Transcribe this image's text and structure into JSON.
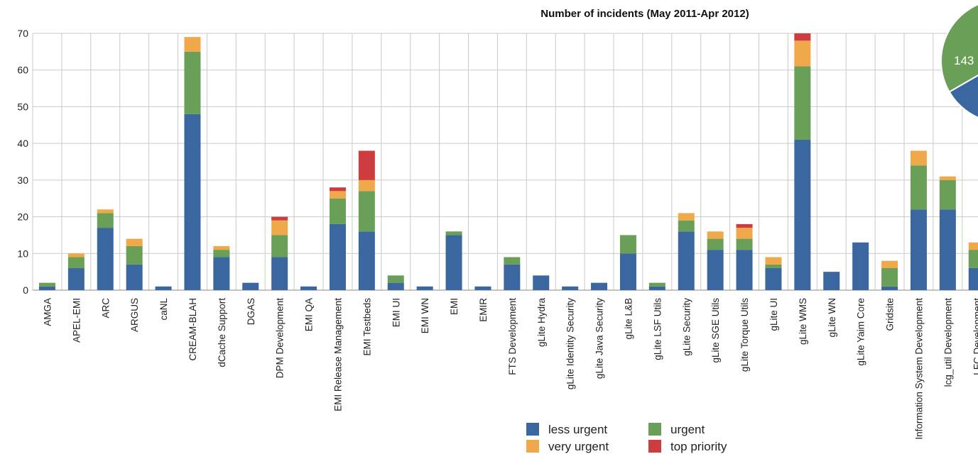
{
  "chart_data": {
    "type": "bar",
    "stacked": true,
    "title": "Number of incidents (May 2011-Apr 2012)",
    "xlabel": "",
    "ylabel": "",
    "ylim": [
      0,
      70
    ],
    "yticks": [
      0,
      10,
      20,
      30,
      40,
      50,
      60,
      70
    ],
    "grid": true,
    "legend_position": "bottom-center",
    "categories": [
      "AMGA",
      "APEL-EMI",
      "ARC",
      "ARGUS",
      "caNL",
      "CREAM-BLAH",
      "dCache Support",
      "DGAS",
      "DPM Development",
      "EMI QA",
      "EMI Release Management",
      "EMI Testbeds",
      "EMI UI",
      "EMI WN",
      "EMI",
      "EMIR",
      "FTS Development",
      "gLite Hydra",
      "gLite Identity Security",
      "gLite Java Security",
      "gLite L&B",
      "gLite LSF Utils",
      "gLite Security",
      "gLite SGE Utils",
      "gLite Torque Utils",
      "gLite UI",
      "gLite WMS",
      "gLite WN",
      "gLite Yaim Core",
      "Gridsite",
      "Information System Development",
      "lcg_util Development",
      "LFC Development"
    ],
    "series": [
      {
        "name": "less urgent",
        "color": "#3b67a0",
        "values": [
          1,
          6,
          17,
          7,
          1,
          48,
          9,
          2,
          9,
          1,
          18,
          16,
          2,
          1,
          15,
          1,
          7,
          4,
          1,
          2,
          10,
          1,
          16,
          11,
          11,
          6,
          41,
          5,
          13,
          1,
          22,
          22,
          6
        ]
      },
      {
        "name": "urgent",
        "color": "#6a9f58",
        "values": [
          1,
          3,
          4,
          5,
          0,
          17,
          2,
          0,
          6,
          0,
          7,
          11,
          2,
          0,
          1,
          0,
          2,
          0,
          0,
          0,
          5,
          1,
          3,
          3,
          3,
          1,
          20,
          0,
          0,
          5,
          12,
          8,
          5
        ]
      },
      {
        "name": "very urgent",
        "color": "#f0a94a",
        "values": [
          0,
          1,
          1,
          2,
          0,
          4,
          1,
          0,
          4,
          0,
          2,
          3,
          0,
          0,
          0,
          0,
          0,
          0,
          0,
          0,
          0,
          0,
          2,
          2,
          3,
          2,
          7,
          0,
          0,
          2,
          4,
          1,
          2
        ]
      },
      {
        "name": "top priority",
        "color": "#cd3d3f",
        "values": [
          0,
          0,
          0,
          0,
          0,
          0,
          0,
          0,
          1,
          0,
          1,
          8,
          0,
          0,
          0,
          0,
          0,
          0,
          0,
          0,
          0,
          0,
          0,
          0,
          1,
          0,
          2,
          0,
          0,
          0,
          0,
          0,
          0
        ]
      }
    ],
    "pie": {
      "type": "pie",
      "visible_label": "143",
      "slices": [
        {
          "name": "urgent",
          "color": "#6a9f58",
          "value": 143
        },
        {
          "name": "very urgent",
          "color": "#f0a94a"
        },
        {
          "name": "less urgent",
          "color": "#3b67a0"
        }
      ]
    }
  }
}
